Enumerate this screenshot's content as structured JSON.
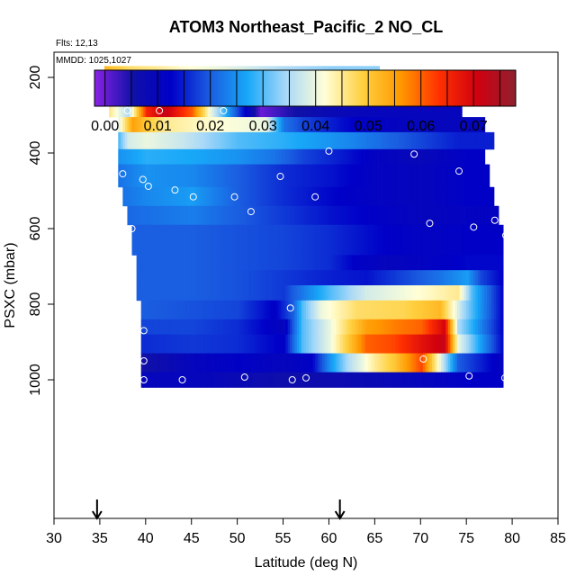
{
  "chart_data": {
    "type": "heatmap",
    "title": "ATOM3 Northeast_Pacific_2 NO_CL",
    "annotations": [
      "Flts: 12,13",
      "MMDD: 1025,1027"
    ],
    "xlabel": "Latitude (deg N)",
    "ylabel": "PSXC (mbar)",
    "xlim": [
      30,
      85
    ],
    "ylim": [
      1025,
      0
    ],
    "x_ticks": [
      30,
      35,
      40,
      45,
      50,
      55,
      60,
      65,
      70,
      75,
      80,
      85
    ],
    "y_ticks": [
      200,
      400,
      600,
      800,
      1000
    ],
    "colorbar": {
      "range": [
        -0.002,
        0.078
      ],
      "ticks": [
        0.0,
        0.01,
        0.02,
        0.03,
        0.04,
        0.05,
        0.06,
        0.07
      ],
      "tick_labels": [
        "0.00",
        "0.01",
        "0.02",
        "0.03",
        "0.04",
        "0.05",
        "0.06",
        "0.07"
      ],
      "colors": [
        "#8a22e6",
        "#1010a8",
        "#0000c8",
        "#1a5ce0",
        "#18a8f8",
        "#a8d8f8",
        "#ffffd8",
        "#ffd040",
        "#ff9800",
        "#ff3000",
        "#d00010",
        "#902030"
      ]
    },
    "bands": [
      {
        "p": [
          170,
          215
        ],
        "segments": [
          [
            35.5,
            0.052
          ],
          [
            38,
            0.047
          ],
          [
            41,
            0.045
          ],
          [
            44,
            0.042
          ],
          [
            48,
            0.04
          ],
          [
            55,
            0.035
          ],
          [
            60,
            0.033
          ],
          [
            65.5,
            0.033
          ]
        ]
      },
      {
        "p": [
          215,
          260
        ],
        "segments": [
          [
            35.5,
            0.055
          ],
          [
            37.5,
            0.07
          ],
          [
            40,
            0.06
          ],
          [
            41.5,
            0.05
          ],
          [
            43.5,
            0.022
          ],
          [
            55,
            0.021
          ],
          [
            66,
            0.02
          ],
          [
            72,
            0.019
          ]
        ]
      },
      {
        "p": [
          260,
          305
        ],
        "segments": [
          [
            36,
            0.045
          ],
          [
            38,
            0.035
          ],
          [
            40,
            0.065
          ],
          [
            42,
            0.072
          ],
          [
            45,
            0.06
          ],
          [
            47,
            0.04
          ],
          [
            49,
            0.025
          ],
          [
            52.5,
            0.0
          ],
          [
            56,
            0.005
          ],
          [
            60,
            0.008
          ],
          [
            65,
            0.01
          ],
          [
            74.5,
            0.01
          ]
        ]
      },
      {
        "p": [
          305,
          345
        ],
        "segments": [
          [
            37,
            0.04
          ],
          [
            38.5,
            0.055
          ],
          [
            40,
            0.05
          ],
          [
            42,
            0.045
          ],
          [
            47,
            0.042
          ],
          [
            53,
            0.04
          ],
          [
            55,
            0.022
          ],
          [
            57,
            0.018
          ],
          [
            63,
            0.012
          ],
          [
            69,
            0.01
          ],
          [
            77,
            0.01
          ]
        ]
      },
      {
        "p": [
          345,
          390
        ],
        "segments": [
          [
            37,
            0.03
          ],
          [
            38,
            0.038
          ],
          [
            40,
            0.04
          ],
          [
            44,
            0.037
          ],
          [
            50,
            0.03
          ],
          [
            55,
            0.028
          ],
          [
            62,
            0.024
          ],
          [
            66,
            0.021
          ],
          [
            70,
            0.018
          ],
          [
            74,
            0.015
          ],
          [
            78,
            0.015
          ]
        ]
      },
      {
        "p": [
          390,
          430
        ],
        "segments": [
          [
            37,
            0.025
          ],
          [
            40,
            0.028
          ],
          [
            45,
            0.027
          ],
          [
            50,
            0.025
          ],
          [
            54,
            0.022
          ],
          [
            57,
            0.018
          ],
          [
            62,
            0.014
          ],
          [
            65,
            0.011
          ],
          [
            70,
            0.009
          ],
          [
            75,
            0.012
          ],
          [
            77,
            0.012
          ]
        ]
      },
      {
        "p": [
          430,
          490
        ],
        "segments": [
          [
            37,
            0.022
          ],
          [
            40,
            0.025
          ],
          [
            45,
            0.024
          ],
          [
            50,
            0.02
          ],
          [
            55,
            0.016
          ],
          [
            60,
            0.014
          ],
          [
            65,
            0.011
          ],
          [
            70,
            0.01
          ],
          [
            75,
            0.012
          ],
          [
            77.5,
            0.012
          ]
        ]
      },
      {
        "p": [
          490,
          540
        ],
        "segments": [
          [
            37.5,
            0.022
          ],
          [
            40,
            0.024
          ],
          [
            45,
            0.026
          ],
          [
            50,
            0.02
          ],
          [
            55,
            0.016
          ],
          [
            60,
            0.013
          ],
          [
            65,
            0.011
          ],
          [
            70,
            0.01
          ],
          [
            75,
            0.012
          ],
          [
            78,
            0.012
          ]
        ]
      },
      {
        "p": [
          540,
          590
        ],
        "segments": [
          [
            38,
            0.021
          ],
          [
            41,
            0.022
          ],
          [
            45,
            0.023
          ],
          [
            50,
            0.02
          ],
          [
            55,
            0.017
          ],
          [
            60,
            0.014
          ],
          [
            65,
            0.012
          ],
          [
            70,
            0.01
          ],
          [
            75,
            0.011
          ],
          [
            78.5,
            0.011
          ]
        ]
      },
      {
        "p": [
          590,
          670
        ],
        "segments": [
          [
            38.5,
            0.02
          ],
          [
            45,
            0.02
          ],
          [
            50,
            0.019
          ],
          [
            55,
            0.018
          ],
          [
            60,
            0.016
          ],
          [
            65,
            0.013
          ],
          [
            70,
            0.011
          ],
          [
            75,
            0.012
          ],
          [
            79,
            0.012
          ]
        ]
      },
      {
        "p": [
          670,
          710
        ],
        "segments": [
          [
            39,
            0.02
          ],
          [
            45,
            0.02
          ],
          [
            50,
            0.019
          ],
          [
            55,
            0.018
          ],
          [
            60,
            0.016
          ],
          [
            63,
            0.012
          ],
          [
            66,
            0.01
          ],
          [
            70,
            0.011
          ],
          [
            75,
            0.013
          ],
          [
            79,
            0.013
          ]
        ]
      },
      {
        "p": [
          710,
          750
        ],
        "segments": [
          [
            39,
            0.02
          ],
          [
            45,
            0.02
          ],
          [
            50,
            0.019
          ],
          [
            55,
            0.017
          ],
          [
            60,
            0.015
          ],
          [
            64,
            0.014
          ],
          [
            68,
            0.018
          ],
          [
            72,
            0.022
          ],
          [
            75,
            0.026
          ],
          [
            76.5,
            0.018
          ],
          [
            79,
            0.012
          ]
        ]
      },
      {
        "p": [
          750,
          790
        ],
        "segments": [
          [
            39,
            0.02
          ],
          [
            45,
            0.02
          ],
          [
            50,
            0.019
          ],
          [
            55,
            0.017
          ],
          [
            56,
            0.02
          ],
          [
            60,
            0.03
          ],
          [
            64,
            0.038
          ],
          [
            70,
            0.042
          ],
          [
            74,
            0.045
          ],
          [
            75.5,
            0.03
          ],
          [
            79,
            0.012
          ]
        ]
      },
      {
        "p": [
          790,
          840
        ],
        "segments": [
          [
            39.5,
            0.02
          ],
          [
            45,
            0.019
          ],
          [
            50,
            0.018
          ],
          [
            54,
            0.012
          ],
          [
            56,
            0.02
          ],
          [
            57,
            0.03
          ],
          [
            59,
            0.04
          ],
          [
            63,
            0.047
          ],
          [
            68,
            0.048
          ],
          [
            72,
            0.052
          ],
          [
            74.5,
            0.035
          ],
          [
            79,
            0.012
          ]
        ]
      },
      {
        "p": [
          840,
          880
        ],
        "segments": [
          [
            39.5,
            0.018
          ],
          [
            45,
            0.018
          ],
          [
            50,
            0.016
          ],
          [
            55,
            0.01
          ],
          [
            57,
            0.03
          ],
          [
            58.5,
            0.035
          ],
          [
            60,
            0.04
          ],
          [
            62,
            0.048
          ],
          [
            64,
            0.055
          ],
          [
            67,
            0.058
          ],
          [
            70,
            0.06
          ],
          [
            72.5,
            0.07
          ],
          [
            74,
            0.035
          ],
          [
            79,
            0.012
          ]
        ]
      },
      {
        "p": [
          880,
          930
        ],
        "segments": [
          [
            39.5,
            0.016
          ],
          [
            45,
            0.017
          ],
          [
            50,
            0.016
          ],
          [
            55,
            0.012
          ],
          [
            57,
            0.03
          ],
          [
            58.5,
            0.035
          ],
          [
            60,
            0.04
          ],
          [
            62,
            0.05
          ],
          [
            64,
            0.06
          ],
          [
            67,
            0.062
          ],
          [
            70,
            0.068
          ],
          [
            72.5,
            0.072
          ],
          [
            74,
            0.04
          ],
          [
            79,
            0.012
          ]
        ]
      },
      {
        "p": [
          930,
          980
        ],
        "segments": [
          [
            39.5,
            0.005
          ],
          [
            45,
            0.01
          ],
          [
            50,
            0.012
          ],
          [
            55,
            0.01
          ],
          [
            58,
            0.012
          ],
          [
            60,
            0.025
          ],
          [
            62,
            0.035
          ],
          [
            65,
            0.045
          ],
          [
            67,
            0.05
          ],
          [
            70,
            0.062
          ],
          [
            72,
            0.04
          ],
          [
            74,
            0.02
          ],
          [
            79,
            0.01
          ]
        ]
      },
      {
        "p": [
          980,
          1020
        ],
        "segments": [
          [
            39.5,
            0.01
          ],
          [
            45,
            0.01
          ],
          [
            50,
            0.008
          ],
          [
            55,
            0.006
          ],
          [
            60,
            0.007
          ],
          [
            65,
            0.008
          ],
          [
            70,
            0.01
          ],
          [
            75,
            0.012
          ],
          [
            79,
            0.012
          ]
        ]
      }
    ],
    "obs_points": [
      [
        35.7,
        200
      ],
      [
        38,
        288
      ],
      [
        41.5,
        288
      ],
      [
        48.5,
        288
      ],
      [
        51.5,
        265
      ],
      [
        65.3,
        200
      ],
      [
        72,
        228
      ],
      [
        78.8,
        352
      ],
      [
        37.5,
        455
      ],
      [
        39.7,
        470
      ],
      [
        40.3,
        488
      ],
      [
        43.2,
        498
      ],
      [
        45.2,
        516
      ],
      [
        49.7,
        516
      ],
      [
        51.5,
        555
      ],
      [
        54.7,
        462
      ],
      [
        58.5,
        516
      ],
      [
        60,
        395
      ],
      [
        69.3,
        403
      ],
      [
        74.2,
        448
      ],
      [
        38.5,
        600
      ],
      [
        71,
        586
      ],
      [
        75.8,
        596
      ],
      [
        78.1,
        578
      ],
      [
        79.3,
        618
      ],
      [
        39.8,
        870
      ],
      [
        55.8,
        810
      ],
      [
        70.3,
        945
      ],
      [
        39.8,
        950
      ],
      [
        39.8,
        1000
      ],
      [
        44,
        1000
      ],
      [
        50.8,
        993
      ],
      [
        56,
        1000
      ],
      [
        57.5,
        995
      ],
      [
        75.3,
        990
      ],
      [
        79.2,
        995
      ]
    ],
    "arrows": [
      34.7,
      61.2
    ]
  }
}
